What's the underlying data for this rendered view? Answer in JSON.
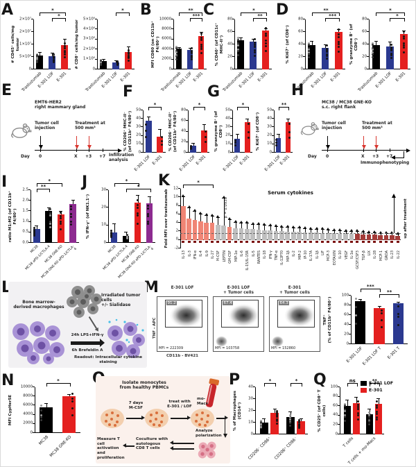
{
  "panels": {
    "A": "A",
    "B": "B",
    "C": "C",
    "D": "D",
    "E": "E",
    "F": "F",
    "G": "G",
    "H": "H",
    "I": "I",
    "J": "J",
    "K": "K",
    "L": "L",
    "M": "M",
    "N": "N",
    "O": "O",
    "P": "P",
    "Q": "Q"
  },
  "chart_data": [
    {
      "id": "A1",
      "type": "bar",
      "ylabel": "# CD45⁺ cells/mg tumor",
      "ymin": 0,
      "ymax": 20000000,
      "yticks": [
        "0",
        "5×10⁶",
        "1×10⁷",
        "2×10⁷",
        "2×10⁷"
      ],
      "cats": [
        "Trastuzumab",
        "E-301 LOF",
        "E-301"
      ],
      "values": [
        5500000,
        5300000,
        9700000
      ],
      "errs": [
        1200000,
        1000000,
        2200000
      ],
      "colors": [
        "#000000",
        "#2b3990",
        "#e4201f"
      ],
      "ndots": 7,
      "sig": [
        {
          "a": 0,
          "b": 2,
          "t": "*",
          "l": 0
        },
        {
          "a": 1,
          "b": 2,
          "t": "*",
          "l": 1
        }
      ],
      "m": {
        "l": 34,
        "r": 4,
        "t": 18,
        "b": 30
      }
    },
    {
      "id": "A2",
      "type": "bar",
      "ylabel": "# CD8⁺ cells/mg tumor",
      "ymin": 0,
      "ymax": 5000000,
      "yticks": [
        "0",
        "1×10⁶",
        "2×10⁶",
        "3×10⁶",
        "4×10⁶",
        "5×10⁶"
      ],
      "cats": [
        "Trastuzumab",
        "E-301 LOF",
        "E-301"
      ],
      "values": [
        800000,
        700000,
        1750000
      ],
      "errs": [
        200000,
        150000,
        450000
      ],
      "colors": [
        "#000000",
        "#2b3990",
        "#e4201f"
      ],
      "ndots": 7,
      "sig": [
        {
          "a": 1,
          "b": 2,
          "t": "*",
          "l": 0
        }
      ],
      "m": {
        "l": 34,
        "r": 4,
        "t": 18,
        "b": 30
      }
    },
    {
      "id": "B",
      "type": "bar",
      "ylabel": "MFI CD80 (on CD11b⁺ F4/80⁺)",
      "ymin": 0,
      "ymax": 10000,
      "yticks": [
        "0",
        "2000",
        "4000",
        "6000",
        "8000",
        "10000"
      ],
      "cats": [
        "Trastuzumab",
        "E-301 LOF",
        "E-301"
      ],
      "values": [
        4100,
        3900,
        6700
      ],
      "errs": [
        260,
        250,
        700
      ],
      "colors": [
        "#000000",
        "#2b3990",
        "#e4201f"
      ],
      "ndots": 7,
      "sig": [
        {
          "a": 0,
          "b": 2,
          "t": "**",
          "l": 0
        },
        {
          "a": 1,
          "b": 2,
          "t": "***",
          "l": 1
        }
      ],
      "m": {
        "l": 34,
        "r": 4,
        "t": 18,
        "b": 30
      }
    },
    {
      "id": "C",
      "type": "bar",
      "ylabel": "% CD40⁺ (of CD11c⁺ MHC-II⁺)",
      "ymin": 0,
      "ymax": 80,
      "yticks": [
        "0",
        "20",
        "40",
        "60",
        "80"
      ],
      "cats": [
        "Trastuzumab",
        "E-301 LOF",
        "E-301"
      ],
      "values": [
        47,
        45,
        62
      ],
      "errs": [
        3,
        3,
        3
      ],
      "colors": [
        "#000000",
        "#2b3990",
        "#e4201f"
      ],
      "ndots": 7,
      "sig": [
        {
          "a": 0,
          "b": 2,
          "t": "*",
          "l": 0
        },
        {
          "a": 1,
          "b": 2,
          "t": "**",
          "l": 1
        }
      ],
      "m": {
        "l": 30,
        "r": 4,
        "t": 18,
        "b": 30
      }
    },
    {
      "id": "D1",
      "type": "bar",
      "ylabel": "% Ki67⁺ (of CD8⁺)",
      "ymin": 0,
      "ymax": 80,
      "yticks": [
        "0",
        "20",
        "40",
        "60",
        "80"
      ],
      "cats": [
        "Trastuzumab",
        "E-301 LOF",
        "E-301"
      ],
      "values": [
        39,
        35,
        60
      ],
      "errs": [
        5,
        4,
        3
      ],
      "colors": [
        "#000000",
        "#2b3990",
        "#e4201f"
      ],
      "ndots": 7,
      "sig": [
        {
          "a": 0,
          "b": 2,
          "t": "**",
          "l": 0
        },
        {
          "a": 1,
          "b": 2,
          "t": "***",
          "l": 1
        }
      ],
      "m": {
        "l": 30,
        "r": 4,
        "t": 18,
        "b": 30
      }
    },
    {
      "id": "D2",
      "type": "bar",
      "ylabel": "% granzyme B⁺ (of CD8⁺)",
      "ymin": 0,
      "ymax": 80,
      "yticks": [
        "0",
        "20",
        "40",
        "60",
        "80"
      ],
      "cats": [
        "Trastuzumab",
        "E-301 LOF",
        "E-301"
      ],
      "values": [
        39,
        37,
        57
      ],
      "errs": [
        6,
        6,
        4
      ],
      "colors": [
        "#000000",
        "#2b3990",
        "#e4201f"
      ],
      "ndots": 7,
      "sig": [
        {
          "a": 0,
          "b": 2,
          "t": "*",
          "l": 0
        },
        {
          "a": 1,
          "b": 2,
          "t": "*",
          "l": 1
        }
      ],
      "m": {
        "l": 30,
        "r": 6,
        "t": 18,
        "b": 30
      }
    },
    {
      "id": "F1",
      "type": "bar",
      "ylabel": "% CD206⁺ MHC-II⁻\n(of CD11b⁺ F4/80⁺)",
      "ymin": 0,
      "ymax": 50,
      "yticks": [
        "0",
        "10",
        "20",
        "30",
        "40",
        "50"
      ],
      "cats": [
        "E-301 LOF",
        "E-301"
      ],
      "values": [
        38,
        19
      ],
      "errs": [
        4,
        8
      ],
      "colors": [
        "#2b3990",
        "#e4201f"
      ],
      "ndots": 3,
      "sig": [
        {
          "a": 0,
          "b": 1,
          "t": "*",
          "l": 0
        }
      ],
      "m": {
        "l": 28,
        "r": 3,
        "t": 13,
        "b": 26
      },
      "ylx": 0
    },
    {
      "id": "F2",
      "type": "bar",
      "ylabel": "% CD206⁻ MHC-II⁺\n(of CD11b⁺ F4/80⁺)",
      "ymin": 0,
      "ymax": 80,
      "yticks": [
        "0",
        "20",
        "40",
        "60",
        "80"
      ],
      "cats": [
        "E-301 LOF",
        "E-301"
      ],
      "values": [
        13,
        42
      ],
      "errs": [
        4,
        10
      ],
      "colors": [
        "#2b3990",
        "#e4201f"
      ],
      "ndots": 3,
      "sig": [
        {
          "a": 0,
          "b": 1,
          "t": "*",
          "l": 0
        }
      ],
      "m": {
        "l": 28,
        "r": 3,
        "t": 13,
        "b": 26
      },
      "ylx": 0
    },
    {
      "id": "G1",
      "type": "bar",
      "ylabel": "% granzyme B⁺ (of CD8⁺)",
      "ymin": 0,
      "ymax": 50,
      "yticks": [
        "0",
        "10",
        "20",
        "30",
        "40",
        "50"
      ],
      "cats": [
        "E-301 LOF",
        "E-301"
      ],
      "values": [
        16,
        36
      ],
      "errs": [
        5,
        3
      ],
      "colors": [
        "#2b3990",
        "#e4201f"
      ],
      "ndots": 3,
      "sig": [
        {
          "a": 0,
          "b": 1,
          "t": "*",
          "l": 0
        }
      ],
      "m": {
        "l": 28,
        "r": 3,
        "t": 13,
        "b": 26
      }
    },
    {
      "id": "G2",
      "type": "bar",
      "ylabel": "% Ki67⁺ (of CD8⁺)",
      "ymin": 0,
      "ymax": 50,
      "yticks": [
        "0",
        "10",
        "20",
        "30",
        "40",
        "50"
      ],
      "cats": [
        "E-301 LOF",
        "E-301"
      ],
      "values": [
        17,
        36
      ],
      "errs": [
        4,
        3
      ],
      "colors": [
        "#2b3990",
        "#e4201f"
      ],
      "ndots": 3,
      "sig": [
        {
          "a": 0,
          "b": 1,
          "t": "**",
          "l": 0
        }
      ],
      "m": {
        "l": 28,
        "r": 3,
        "t": 13,
        "b": 26
      }
    },
    {
      "id": "I",
      "type": "bar",
      "ylabel": "ratio M1:M2 (of CD11b⁺ F4/80⁺)",
      "ymin": 0,
      "ymax": 2.5,
      "yticks": [
        "0.0",
        "0.5",
        "1.0",
        "1.5",
        "2.0",
        "2.5"
      ],
      "cats": [
        "MC38",
        "MC38 aPD-1/CTLA-4",
        "MC38 GNE-KO",
        "MC38 GNE-KO aPD-1/CTLA-4"
      ],
      "values": [
        0.65,
        1.5,
        1.35,
        1.85
      ],
      "errs": [
        0.15,
        0.15,
        0.12,
        0.15
      ],
      "colors": [
        "#2b3990",
        "#000000",
        "#e4201f",
        "#8d2b90"
      ],
      "ndots": 6,
      "catfs": 4.8,
      "sig": [
        {
          "a": 0,
          "b": 1,
          "t": "**",
          "l": 1
        },
        {
          "a": 0,
          "b": 2,
          "t": "*",
          "l": 0
        }
      ],
      "m": {
        "l": 34,
        "r": 4,
        "t": 18,
        "b": 48
      }
    },
    {
      "id": "J",
      "type": "bar",
      "ylabel": "% IFN-γ⁺ (of NK1.1⁺)",
      "ymin": 0,
      "ymax": 30,
      "yticks": [
        "0",
        "10",
        "20",
        "30"
      ],
      "cats": [
        "MC38",
        "MC38 aPD-1/CTLA-4",
        "MC38 GNE-KO",
        "MC38 GNE-KO aPD-1/CTLA-4"
      ],
      "values": [
        6,
        4,
        23,
        22.5
      ],
      "errs": [
        4.5,
        2,
        4,
        3.5
      ],
      "colors": [
        "#2b3990",
        "#000000",
        "#e4201f",
        "#8d2b90"
      ],
      "ndots": 6,
      "catfs": 4.8,
      "sig": [
        {
          "a": 0,
          "b": 2,
          "t": "*",
          "l": 0
        },
        {
          "a": 1,
          "b": 3,
          "t": "*",
          "l": 1
        }
      ],
      "m": {
        "l": 34,
        "r": 4,
        "t": 18,
        "b": 48
      }
    },
    {
      "id": "K",
      "type": "waterfall",
      "title": "Serum cytokines",
      "ylabel": "Fold MFI over trastuzumab",
      "ymin": -2,
      "ymax": 12,
      "yticks": [
        "-2",
        "0",
        "2",
        "4",
        "6",
        "8",
        "10",
        "12"
      ],
      "rot90": true,
      "tri": true,
      "sub": true,
      "bw": 0.8,
      "dash": 1.5,
      "plabel": {
        "i": 7,
        "v": 10,
        "t": "p = 0.0938"
      },
      "uparrow": "up after treatment",
      "cats": [
        "IL-13",
        "IL-3",
        "IFN-α",
        "IL-4",
        "IL-9",
        "IL-27",
        "M-CSF",
        "LEPTIN",
        "GM-CSF",
        "MIP-1α",
        "IL-6",
        "IL-15/IL-15R",
        "IL-5",
        "RANTES",
        "IL-18",
        "IFN-γ",
        "TNF-α",
        "IL-12P70",
        "MIP-1β",
        "IL-2",
        "MIP-2",
        "IP-10",
        "IL-17A",
        "IL-1β",
        "LIF",
        "MCP-3",
        "EOTAXIN",
        "IL-10",
        "VEGF",
        "IL-1α",
        "GCSF/CSF3",
        "TGF-β",
        "LIX",
        "IL-28",
        "MCP-1",
        "GROA",
        "IL-23",
        "IL-22"
      ],
      "values": [
        8,
        5,
        4.6,
        4.3,
        4.1,
        4,
        3.6,
        3.3,
        3,
        2.8,
        2.7,
        2.6,
        2.5,
        2.4,
        2.3,
        2.2,
        2.1,
        2,
        1.95,
        1.9,
        1.85,
        1.8,
        1.75,
        1.7,
        1.65,
        1.6,
        1.55,
        1.5,
        1.45,
        1.4,
        1.35,
        1.3,
        1.25,
        1.2,
        1.15,
        1.1,
        1.05,
        1
      ],
      "errs": [
        2,
        2.5,
        2,
        1.6,
        1.5,
        1.5,
        1.5,
        6.5,
        1.6,
        1.2,
        1.2,
        1.2,
        1.1,
        1.1,
        1,
        1,
        0.9,
        0.9,
        0.9,
        0.8,
        0.8,
        0.8,
        0.7,
        0.7,
        0.7,
        0.6,
        0.6,
        0.6,
        0.5,
        0.5,
        0.5,
        0.4,
        0.4,
        0.4,
        0.3,
        0.3,
        0.3,
        0.3
      ],
      "colors": [
        "#f08575",
        "#f08575",
        "#f08575",
        "#f08575",
        "#f08575",
        "#f08575",
        "#bfbfbf",
        "#bfbfbf",
        "#f08575",
        "#bfbfbf",
        "#bfbfbf",
        "#bfbfbf",
        "#bfbfbf",
        "#bfbfbf",
        "#bfbfbf",
        "#bfbfbf",
        "#bfbfbf",
        "#bfbfbf",
        "#bfbfbf",
        "#bfbfbf",
        "#bfbfbf",
        "#bfbfbf",
        "#bfbfbf",
        "#bfbfbf",
        "#bfbfbf",
        "#bfbfbf",
        "#bfbfbf",
        "#bfbfbf",
        "#bfbfbf",
        "#bfbfbf",
        "#a33b38",
        "#a33b38",
        "#a33b38",
        "#a33b38",
        "#a33b38",
        "#a33b38",
        "#a33b38",
        "#a33b38"
      ],
      "ndots": 0,
      "sig": [
        {
          "a": 0,
          "b": 5,
          "t": "*",
          "l": 0
        }
      ],
      "m": {
        "l": 24,
        "r": 18,
        "t": 14,
        "b": 40
      },
      "ylx": 1
    },
    {
      "id": "M",
      "type": "bar",
      "ylabel": "TNF⁺\n(% of CD11b⁺ F4/80⁺)",
      "ymin": 0,
      "ymax": 100,
      "yticks": [
        "0",
        "20",
        "40",
        "60",
        "80",
        "100"
      ],
      "cats": [
        "E-301 LOF",
        "E-301 LOF T",
        "E-301 T"
      ],
      "values": [
        89,
        74,
        84
      ],
      "errs": [
        2,
        3,
        2
      ],
      "colors": [
        "#000000",
        "#e4201f",
        "#2b3990"
      ],
      "ndots": 4,
      "sig": [
        {
          "a": 0,
          "b": 1,
          "t": "***",
          "l": 0
        },
        {
          "a": 1,
          "b": 2,
          "t": "**",
          "l": 1
        }
      ],
      "m": {
        "l": 42,
        "r": 8,
        "t": 18,
        "b": 34
      }
    },
    {
      "id": "N",
      "type": "bar",
      "ylabel": "MFI CypHer5E",
      "ymin": 0,
      "ymax": 10000,
      "yticks": [
        "0",
        "2000",
        "4000",
        "6000",
        "8000",
        "10000"
      ],
      "cats": [
        "MC38",
        "MC38 GNE-KO"
      ],
      "values": [
        5600,
        8000
      ],
      "errs": [
        700,
        300
      ],
      "colors": [
        "#000000",
        "#e4201f"
      ],
      "ndots": 5,
      "sig": [
        {
          "a": 0,
          "b": 1,
          "t": "*",
          "l": 0
        }
      ],
      "m": {
        "l": 40,
        "r": 10,
        "t": 14,
        "b": 38
      }
    },
    {
      "id": "P",
      "type": "bar",
      "gs": 2,
      "ylabel": "% of Macrophages (CD14⁺)",
      "ymin": 0,
      "ymax": 40,
      "yticks": [
        "0",
        "10",
        "20",
        "30",
        "40"
      ],
      "cats": [
        "CD206⁻ CD86⁺",
        "CD206⁺ CD86⁻"
      ],
      "catpos": [
        0.26,
        0.76
      ],
      "centers": [
        0.17,
        0.37,
        0.67,
        0.87
      ],
      "values": [
        10,
        18,
        15,
        11
      ],
      "errs": [
        3,
        3,
        4,
        2
      ],
      "colors": [
        "#000000",
        "#e4201f",
        "#000000",
        "#e4201f"
      ],
      "ndots": 8,
      "bw": 0.62,
      "sig": [
        {
          "a": 0,
          "b": 1,
          "t": "*",
          "l": 0
        },
        {
          "a": 2,
          "b": 3,
          "t": "*",
          "l": 0
        }
      ],
      "m": {
        "l": 34,
        "r": 6,
        "t": 14,
        "b": 42
      }
    },
    {
      "id": "Q",
      "type": "bar",
      "gs": 2,
      "ylabel": "% CD25⁺ (of CD8⁺ T cells)",
      "ymin": 0,
      "ymax": 100,
      "yticks": [
        "0",
        "20",
        "40",
        "60",
        "80",
        "100"
      ],
      "cats": [
        "T cells",
        "T cells + mo-Macs"
      ],
      "catpos": [
        0.26,
        0.76
      ],
      "centers": [
        0.17,
        0.37,
        0.67,
        0.87
      ],
      "values": [
        60,
        66,
        42,
        65
      ],
      "errs": [
        12,
        12,
        11,
        10
      ],
      "colors": [
        "#000000",
        "#e4201f",
        "#000000",
        "#e4201f"
      ],
      "ndots": 7,
      "bw": 0.62,
      "sig": [
        {
          "a": 0,
          "b": 1,
          "t": "ns",
          "l": 0
        },
        {
          "a": 2,
          "b": 3,
          "t": "**",
          "l": 0
        }
      ],
      "m": {
        "l": 34,
        "r": 14,
        "t": 14,
        "b": 42
      }
    }
  ],
  "m_flow": {
    "ylabel": "TNF - APC",
    "xlabel": "CD11b - BV421",
    "plots": [
      {
        "title": "E-301 LOF",
        "gate": "91.2",
        "mfi": "MFI = 222309",
        "tail": false
      },
      {
        "title": "E-301 LOF\n+ Tumor cells",
        "gate": "67.4",
        "mfi": "MFI = 103758",
        "tail": true
      },
      {
        "title": "E-301\n+ Tumor cells",
        "gate": "64.3",
        "mfi": "MFI = 152860",
        "tail": true
      }
    ]
  },
  "q_legend": [
    {
      "label": "E-301 LOF",
      "color": "#000000"
    },
    {
      "label": "E-301",
      "color": "#e4201f"
    }
  ],
  "schem": {
    "E": {
      "l1": "EMT6-HER2\nright mammary gland",
      "inj": "Tumor cell\ninjection",
      "rx": "Treatment at\n500 mm³",
      "day": "Day",
      "t0": "0",
      "t1": "X",
      "t2": "+3",
      "t3": "+7",
      "end": "Infiltration\nanalysis"
    },
    "H": {
      "l1": "MC38 / MC38 GNE-KO\ns.c. right flank",
      "inj": "Tumor cell\ninjection",
      "rx": "Treatment at\n500 mm³",
      "day": "Day",
      "t0": "0",
      "t1": "X",
      "t2": "+3",
      "t3": "+7",
      "end": "Immunophenotyping"
    },
    "L": {
      "bm": "Bone marrow-\nderived macrophages",
      "irr": "Irradiated tumor cells\n+/- Sialidase",
      "lps": "24h LPS+IFN-γ",
      "bfa": "6h Brefeldin A",
      "readout": "Readout: Intracellular cytokine\nstaining"
    },
    "O": {
      "iso": "Isolate monocytes\nfrom healthy PBMCs",
      "mcsf": "7 days\nM-CSF",
      "treat": "treat with\nE-301 / LOF",
      "mm": "mo-\nMacs",
      "ana": "Analyze\npolarization",
      "cocu": "Coculture with\nautologous\nCD8 T cells",
      "meas": "Measure T cell\nactivation and\nproliferation"
    }
  }
}
